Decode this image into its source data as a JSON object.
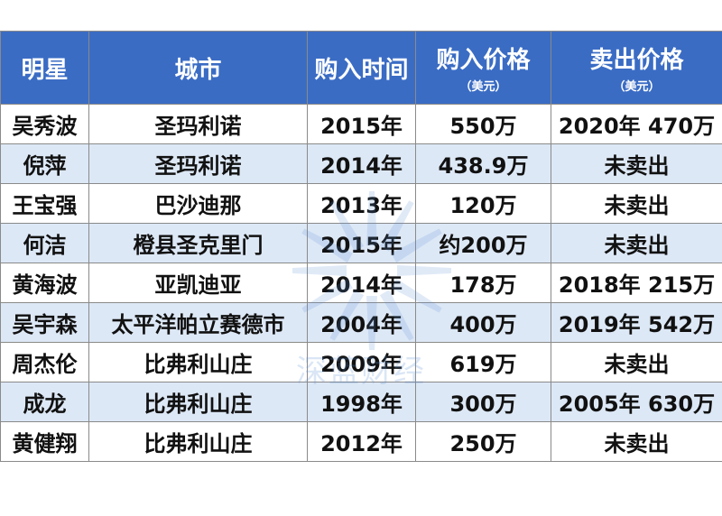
{
  "table": {
    "headers": {
      "star": "明星",
      "city": "城市",
      "buy_time": "购入时间",
      "buy_price": "购入价格",
      "buy_price_unit": "（美元）",
      "sell_price": "卖出价格",
      "sell_price_unit": "（美元）"
    },
    "rows": [
      {
        "star": "吴秀波",
        "city": "圣玛利诺",
        "buy_time": "2015年",
        "buy_price": "550万",
        "sell_price": "2020年 470万"
      },
      {
        "star": "倪萍",
        "city": "圣玛利诺",
        "buy_time": "2014年",
        "buy_price": "438.9万",
        "sell_price": "未卖出"
      },
      {
        "star": "王宝强",
        "city": "巴沙迪那",
        "buy_time": "2013年",
        "buy_price": "120万",
        "sell_price": "未卖出"
      },
      {
        "star": "何洁",
        "city": "橙县圣克里门",
        "buy_time": "2015年",
        "buy_price": "约200万",
        "sell_price": "未卖出"
      },
      {
        "star": "黄海波",
        "city": "亚凯迪亚",
        "buy_time": "2014年",
        "buy_price": "178万",
        "sell_price": "2018年 215万"
      },
      {
        "star": "吴宇森",
        "city": "太平洋帕立赛德市",
        "buy_time": "2004年",
        "buy_price": "400万",
        "sell_price": "2019年 542万"
      },
      {
        "star": "周杰伦",
        "city": "比弗利山庄",
        "buy_time": "2009年",
        "buy_price": "619万",
        "sell_price": "未卖出"
      },
      {
        "star": "成龙",
        "city": "比弗利山庄",
        "buy_time": "1998年",
        "buy_price": "300万",
        "sell_price": "2005年 630万"
      },
      {
        "star": "黄健翔",
        "city": "比弗利山庄",
        "buy_time": "2012年",
        "buy_price": "250万",
        "sell_price": "未卖出"
      }
    ]
  },
  "watermark": {
    "text": "深蓝财经",
    "color": "#5b8fd6",
    "icon": "sunburst-logo-icon"
  },
  "colors": {
    "header_bg": "#3a6cc4",
    "header_text": "#ffffff",
    "row_alt_bg": "#dde8f6",
    "border": "#8a8a8a"
  }
}
